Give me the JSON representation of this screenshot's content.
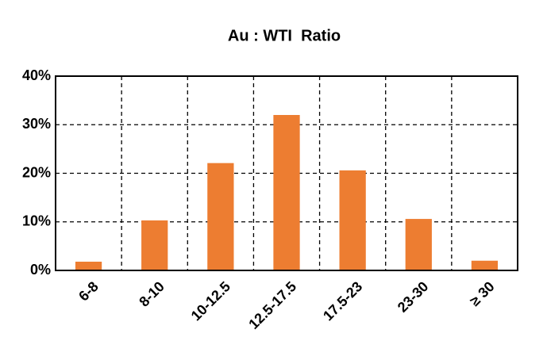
{
  "chart_data": {
    "type": "bar",
    "title": "Au : WTI  Ratio",
    "categories": [
      "6-8",
      "8-10",
      "10-12.5",
      "12.5-17.5",
      "17.5-23",
      "23-30",
      "≥ 30"
    ],
    "values": [
      1.8,
      10.3,
      22.1,
      32,
      20.6,
      10.6,
      2
    ],
    "color": "#ed7d31",
    "ylim": [
      0,
      40
    ],
    "yticks": [
      {
        "value": 0,
        "label": "0%"
      },
      {
        "value": 10,
        "label": "10%"
      },
      {
        "value": 20,
        "label": "20%"
      },
      {
        "value": 30,
        "label": "30%"
      },
      {
        "value": 40,
        "label": "40%"
      }
    ],
    "grid": true
  }
}
